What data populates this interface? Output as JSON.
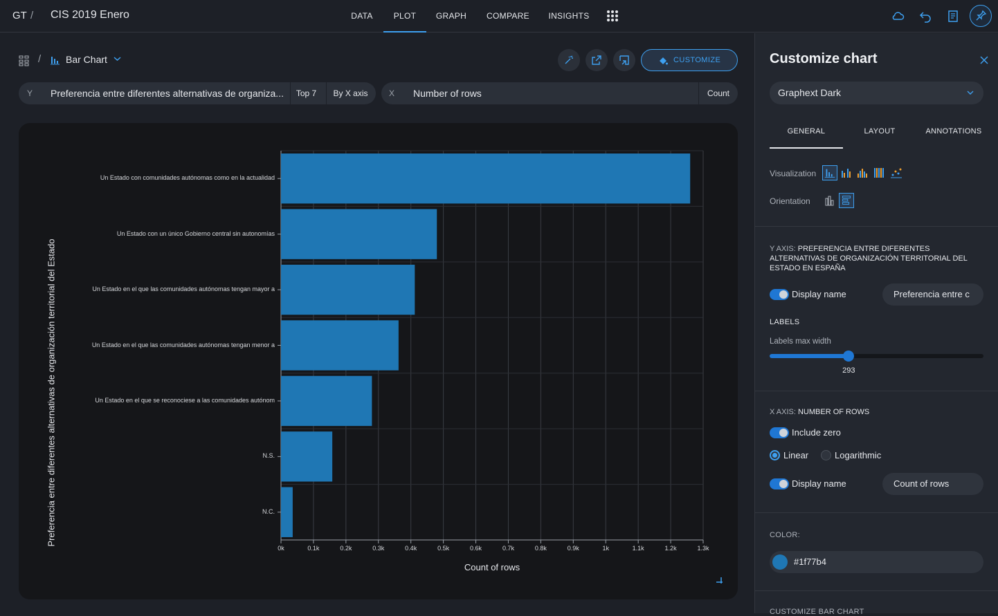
{
  "topbar": {
    "root": "GT",
    "separator": "/",
    "title": "CIS 2019 Enero",
    "tabs": [
      {
        "label": "DATA",
        "active": false
      },
      {
        "label": "PLOT",
        "active": true
      },
      {
        "label": "GRAPH",
        "active": false
      },
      {
        "label": "COMPARE",
        "active": false
      },
      {
        "label": "INSIGHTS",
        "active": false
      }
    ],
    "icons": [
      "apps-grid-icon",
      "cloud-icon",
      "undo-icon",
      "notebook-icon",
      "pin-icon"
    ]
  },
  "chart_header": {
    "separator": "/",
    "chart_type_label": "Bar Chart",
    "customize_label": "CUSTOMIZE"
  },
  "y_pill": {
    "tag": "Y",
    "field": "Preferencia entre diferentes alternativas de organiza...",
    "limit": "Top 7",
    "sort": "By X axis"
  },
  "x_pill": {
    "tag": "X",
    "field": "Number of rows",
    "aggregation": "Count"
  },
  "chart_data": {
    "type": "bar",
    "orientation": "horizontal",
    "categories": [
      "Un Estado con comunidades autónomas como en la actualidad",
      "Un Estado con un único Gobierno central sin autonomías",
      "Un Estado en el que las comunidades autónomas tengan mayor a",
      "Un Estado en el que las comunidades autónomas tengan menor a",
      "Un Estado en el que se reconociese a las comunidades autónom",
      "N.S.",
      "N.C."
    ],
    "values": [
      1260,
      480,
      412,
      362,
      280,
      158,
      36
    ],
    "xlabel": "Count of rows",
    "ylabel": "Preferencia entre diferentes alternativas de organización territorial del Estado",
    "xlim": [
      0,
      1300
    ],
    "xticks": [
      "0k",
      "0.1k",
      "0.2k",
      "0.3k",
      "0.4k",
      "0.5k",
      "0.6k",
      "0.7k",
      "0.8k",
      "0.9k",
      "1k",
      "1.1k",
      "1.2k",
      "1.3k"
    ],
    "color": "#1f77b4",
    "grid": true
  },
  "panel": {
    "title": "Customize chart",
    "theme": "Graphext Dark",
    "tabs": [
      "GENERAL",
      "LAYOUT",
      "ANNOTATIONS"
    ],
    "visualization_label": "Visualization",
    "orientation_label": "Orientation",
    "y_axis_prefix": "Y AXIS:",
    "y_axis_name": "PREFERENCIA ENTRE DIFERENTES ALTERNATIVAS DE ORGANIZACIÓN TERRITORIAL DEL ESTADO EN ESPAÑA",
    "y_display_name_label": "Display name",
    "y_display_name_value": "Preferencia entre c",
    "labels_caption": "LABELS",
    "labels_max_width_label": "Labels max width",
    "labels_max_width_value": "293",
    "labels_max_width_fraction": 0.37,
    "x_axis_prefix": "X AXIS:",
    "x_axis_name": "NUMBER OF ROWS",
    "include_zero_label": "Include zero",
    "linear_label": "Linear",
    "log_label": "Logarithmic",
    "x_display_name_label": "Display name",
    "x_display_name_value": "Count of rows",
    "color_caption": "COLOR:",
    "color_value": "#1f77b4",
    "next_section": "CUSTOMIZE BAR CHART"
  }
}
